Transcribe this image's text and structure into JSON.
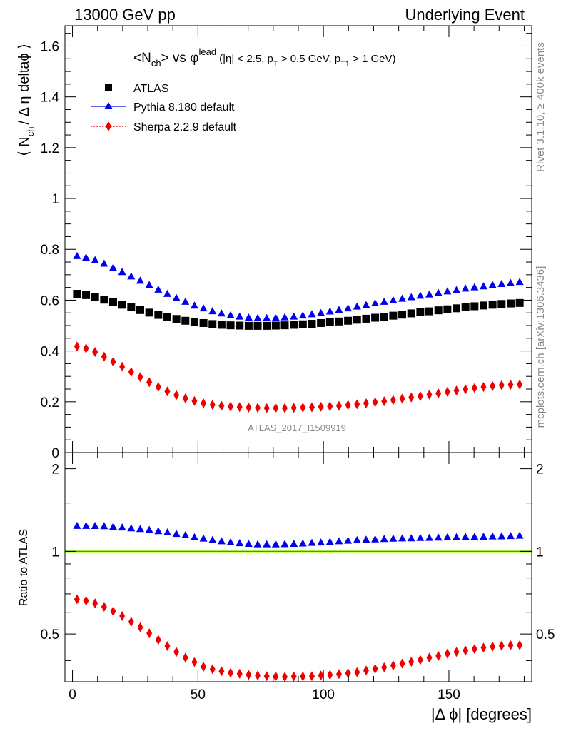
{
  "header": {
    "left": "13000 GeV pp",
    "right": "Underlying Event"
  },
  "side_labels": {
    "rivet": "Rivet 3.1.10, ≥ 400k events",
    "mcplots": "mcplots.cern.ch [arXiv:1306.3436]"
  },
  "watermark": "ATLAS_2017_I1509919",
  "chart_data": [
    {
      "type": "scatter",
      "title": {
        "main": "<N",
        "main_sub": "ch",
        "vs": "> vs φ",
        "vs_sup": "lead",
        "cuts": "(|η| < 2.5, p",
        "cuts_sub1": "T",
        "cuts_mid": " > 0.5 GeV, p",
        "cuts_sub2": "T1",
        "cuts_end": " > 1 GeV)"
      },
      "ylabel": {
        "pre": "⟨ N",
        "sub": "ch",
        "post": "/ Δ η deltaϕ ⟩"
      },
      "xlim": [
        -3,
        183
      ],
      "ylim": [
        0,
        1.68
      ],
      "yticks": [
        0,
        0.2,
        0.4,
        0.6,
        0.8,
        1,
        1.2,
        1.4,
        1.6
      ],
      "ytick_labels": [
        "0",
        "0.2",
        "0.4",
        "0.6",
        "0.8",
        "1",
        "1.2",
        "1.4",
        "1.6"
      ],
      "legend_position": "top-left",
      "x": [
        1.8,
        5.4,
        9.0,
        12.6,
        16.2,
        19.8,
        23.4,
        27.0,
        30.6,
        34.2,
        37.8,
        41.4,
        45.0,
        48.6,
        52.2,
        55.8,
        59.4,
        63.0,
        66.6,
        70.2,
        73.8,
        77.4,
        81.0,
        84.6,
        88.2,
        91.8,
        95.4,
        99.0,
        102.6,
        106.2,
        109.8,
        113.4,
        117.0,
        120.6,
        124.2,
        127.8,
        131.4,
        135.0,
        138.6,
        142.2,
        145.8,
        149.4,
        153.0,
        156.6,
        160.2,
        163.8,
        167.4,
        171.0,
        174.6,
        178.2
      ],
      "series": [
        {
          "name": "ATLAS",
          "marker": "square",
          "color": "#000000",
          "values": [
            0.625,
            0.62,
            0.612,
            0.602,
            0.592,
            0.582,
            0.572,
            0.561,
            0.551,
            0.542,
            0.533,
            0.526,
            0.519,
            0.514,
            0.51,
            0.506,
            0.503,
            0.501,
            0.5,
            0.499,
            0.499,
            0.499,
            0.5,
            0.501,
            0.503,
            0.505,
            0.507,
            0.51,
            0.513,
            0.516,
            0.519,
            0.523,
            0.527,
            0.531,
            0.535,
            0.539,
            0.543,
            0.548,
            0.552,
            0.556,
            0.56,
            0.564,
            0.568,
            0.572,
            0.576,
            0.579,
            0.582,
            0.585,
            0.587,
            0.589
          ]
        },
        {
          "name": "Pythia 8.180 default",
          "marker": "triangle",
          "color": "#0000ee",
          "values": [
            0.773,
            0.767,
            0.757,
            0.743,
            0.727,
            0.71,
            0.693,
            0.676,
            0.659,
            0.641,
            0.624,
            0.608,
            0.593,
            0.578,
            0.567,
            0.556,
            0.547,
            0.54,
            0.535,
            0.531,
            0.529,
            0.529,
            0.53,
            0.532,
            0.535,
            0.539,
            0.544,
            0.549,
            0.555,
            0.561,
            0.567,
            0.574,
            0.58,
            0.587,
            0.593,
            0.599,
            0.605,
            0.611,
            0.617,
            0.622,
            0.628,
            0.634,
            0.639,
            0.645,
            0.65,
            0.654,
            0.659,
            0.663,
            0.667,
            0.671
          ]
        },
        {
          "name": "Sherpa 2.2.9 default",
          "marker": "diamond",
          "color": "#ee0000",
          "values": [
            0.418,
            0.41,
            0.396,
            0.378,
            0.358,
            0.338,
            0.317,
            0.297,
            0.277,
            0.258,
            0.241,
            0.226,
            0.213,
            0.203,
            0.194,
            0.188,
            0.184,
            0.181,
            0.179,
            0.177,
            0.176,
            0.175,
            0.175,
            0.175,
            0.176,
            0.177,
            0.178,
            0.18,
            0.182,
            0.184,
            0.187,
            0.19,
            0.194,
            0.198,
            0.202,
            0.207,
            0.212,
            0.217,
            0.222,
            0.228,
            0.233,
            0.239,
            0.244,
            0.249,
            0.254,
            0.258,
            0.262,
            0.265,
            0.267,
            0.268
          ]
        }
      ]
    },
    {
      "type": "scatter",
      "ylabel": "Ratio to ATLAS",
      "xlabel": "|Δ ϕ| [degrees]",
      "xlim": [
        -3,
        183
      ],
      "ylim": [
        0.335,
        2.29
      ],
      "xticks": [
        0,
        50,
        100,
        150
      ],
      "xtick_labels": [
        "0",
        "50",
        "100",
        "150"
      ],
      "yticks": [
        0.5,
        1,
        2
      ],
      "ytick_labels": [
        "0.5",
        "1",
        "2"
      ],
      "reference_band": {
        "y": 1.0,
        "low": 0.985,
        "high": 1.015,
        "color": "#ccff66",
        "line_color": "#33aa00"
      },
      "x": [
        1.8,
        5.4,
        9.0,
        12.6,
        16.2,
        19.8,
        23.4,
        27.0,
        30.6,
        34.2,
        37.8,
        41.4,
        45.0,
        48.6,
        52.2,
        55.8,
        59.4,
        63.0,
        66.6,
        70.2,
        73.8,
        77.4,
        81.0,
        84.6,
        88.2,
        91.8,
        95.4,
        99.0,
        102.6,
        106.2,
        109.8,
        113.4,
        117.0,
        120.6,
        124.2,
        127.8,
        131.4,
        135.0,
        138.6,
        142.2,
        145.8,
        149.4,
        153.0,
        156.6,
        160.2,
        163.8,
        167.4,
        171.0,
        174.6,
        178.2
      ],
      "series": [
        {
          "name": "Pythia 8.180 default",
          "marker": "triangle",
          "color": "#0000ee",
          "values": [
            1.237,
            1.237,
            1.236,
            1.234,
            1.228,
            1.22,
            1.212,
            1.205,
            1.196,
            1.183,
            1.171,
            1.156,
            1.143,
            1.125,
            1.112,
            1.099,
            1.087,
            1.078,
            1.07,
            1.064,
            1.06,
            1.06,
            1.06,
            1.062,
            1.064,
            1.067,
            1.073,
            1.076,
            1.082,
            1.087,
            1.092,
            1.097,
            1.101,
            1.105,
            1.108,
            1.111,
            1.114,
            1.115,
            1.118,
            1.119,
            1.121,
            1.124,
            1.125,
            1.128,
            1.128,
            1.13,
            1.132,
            1.133,
            1.136,
            1.139
          ]
        },
        {
          "name": "Sherpa 2.2.9 default",
          "marker": "diamond",
          "color": "#ee0000",
          "values": [
            0.669,
            0.661,
            0.647,
            0.628,
            0.605,
            0.581,
            0.554,
            0.529,
            0.503,
            0.476,
            0.452,
            0.43,
            0.41,
            0.395,
            0.38,
            0.372,
            0.366,
            0.361,
            0.358,
            0.355,
            0.353,
            0.351,
            0.35,
            0.349,
            0.35,
            0.35,
            0.351,
            0.353,
            0.355,
            0.357,
            0.36,
            0.363,
            0.368,
            0.373,
            0.378,
            0.384,
            0.39,
            0.396,
            0.402,
            0.41,
            0.416,
            0.424,
            0.43,
            0.435,
            0.441,
            0.446,
            0.45,
            0.453,
            0.455,
            0.455
          ]
        }
      ]
    }
  ]
}
